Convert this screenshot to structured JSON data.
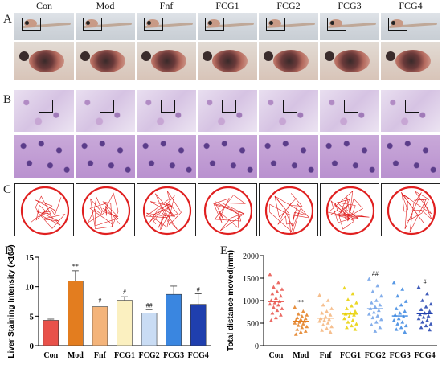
{
  "panels": {
    "A": "A",
    "B": "B",
    "C": "C",
    "D": "D",
    "E": "E"
  },
  "groups": [
    "Con",
    "Mod",
    "Fnf",
    "FCG1",
    "FCG2",
    "FCG3",
    "FCG4"
  ],
  "colors": {
    "con": "#e8514a",
    "mod": "#e37d1f",
    "fnf": "#f4b47a",
    "fcg1": "#fbf0c0",
    "fcg2": "#c9dcf4",
    "fcg3": "#3a86e0",
    "fcg4": "#1f3fae",
    "track": "#e02020"
  },
  "chart_data": [
    {
      "type": "bar",
      "panel": "D",
      "categories": [
        "Con",
        "Mod",
        "Fnf",
        "FCG1",
        "FCG2",
        "FCG3",
        "FCG4"
      ],
      "values": [
        4.3,
        11.0,
        6.6,
        7.7,
        5.5,
        8.7,
        7.0
      ],
      "errors": [
        0.2,
        1.7,
        0.3,
        0.6,
        0.6,
        1.4,
        1.8
      ],
      "annotations": [
        "",
        "**",
        "#",
        "#",
        "##",
        "",
        "#"
      ],
      "ylabel": "Liver Staining Intensity (×10⁵)",
      "ylim": [
        0,
        15
      ],
      "yticks": [
        "0",
        "5",
        "10",
        "15"
      ]
    },
    {
      "type": "scatter",
      "panel": "E",
      "categories": [
        "Con",
        "Mod",
        "Fnf",
        "FCG1",
        "FCG2",
        "FCG3",
        "FCG4"
      ],
      "means": [
        980,
        540,
        610,
        700,
        820,
        660,
        710
      ],
      "annotations": [
        "",
        "**",
        "",
        "",
        "##",
        "",
        "#"
      ],
      "ylabel": "Total distance moved(mm)",
      "ylim": [
        0,
        2000
      ],
      "yticks": [
        "0",
        "500",
        "1000",
        "1500",
        "2000"
      ],
      "points": [
        [
          1580,
          1400,
          1300,
          1250,
          1200,
          1150,
          1100,
          1050,
          1000,
          980,
          950,
          920,
          900,
          850,
          820,
          780,
          720,
          680,
          620,
          560
        ],
        [
          850,
          760,
          700,
          680,
          650,
          620,
          600,
          580,
          560,
          540,
          520,
          500,
          480,
          450,
          420,
          400,
          360,
          320,
          300,
          250
        ],
        [
          1120,
          1000,
          900,
          820,
          760,
          720,
          680,
          640,
          600,
          580,
          560,
          540,
          500,
          460,
          420,
          380,
          340,
          300
        ],
        [
          1280,
          1150,
          1020,
          950,
          880,
          820,
          760,
          720,
          700,
          680,
          640,
          600,
          560,
          520,
          480,
          440,
          400,
          360
        ],
        [
          1480,
          1330,
          1200,
          1100,
          1000,
          950,
          900,
          860,
          820,
          780,
          740,
          700,
          660,
          620,
          580,
          520,
          460,
          400,
          320
        ],
        [
          1400,
          1250,
          1100,
          980,
          900,
          820,
          760,
          720,
          680,
          640,
          600,
          560,
          520,
          480,
          440,
          400,
          360,
          300
        ],
        [
          1300,
          1150,
          1000,
          920,
          860,
          800,
          760,
          720,
          690,
          660,
          630,
          600,
          560,
          520,
          480,
          440,
          400,
          350
        ]
      ]
    }
  ]
}
